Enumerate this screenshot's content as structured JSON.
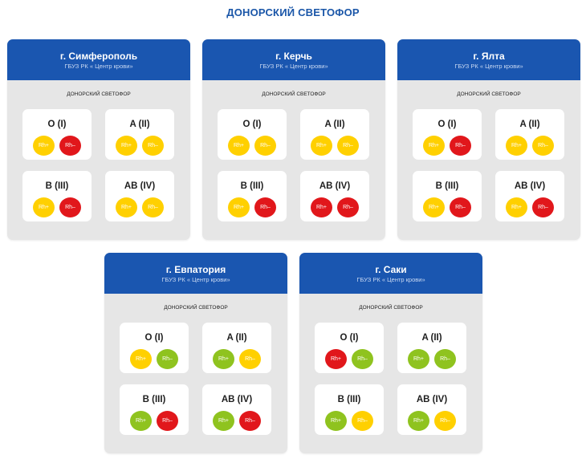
{
  "page_title": "ДОНОРСКИЙ СВЕТОФОР",
  "colors": {
    "header_blue": "#1a56b0",
    "title_blue": "#1a56a8",
    "card_gray": "#e6e6e6",
    "yellow": "#ffd000",
    "red": "#e1171b",
    "green": "#8fc31f"
  },
  "rh_labels": {
    "pos": "Rh+",
    "neg": "Rh–"
  },
  "groups": [
    "O (I)",
    "A (II)",
    "B (III)",
    "AB (IV)"
  ],
  "cards": [
    {
      "city": "г. Симферополь",
      "org": "ГБУЗ РК « Центр крови»",
      "subtitle": "ДОНОРСКИЙ СВЕТОФОР",
      "levels": [
        [
          "yellow",
          "red"
        ],
        [
          "yellow",
          "yellow"
        ],
        [
          "yellow",
          "red"
        ],
        [
          "yellow",
          "yellow"
        ]
      ]
    },
    {
      "city": "г. Керчь",
      "org": "ГБУЗ РК « Центр крови»",
      "subtitle": "ДОНОРСКИЙ СВЕТОФОР",
      "levels": [
        [
          "yellow",
          "yellow"
        ],
        [
          "yellow",
          "yellow"
        ],
        [
          "yellow",
          "red"
        ],
        [
          "red",
          "red"
        ]
      ]
    },
    {
      "city": "г. Ялта",
      "org": "ГБУЗ РК « Центр крови»",
      "subtitle": "ДОНОРСКИЙ СВЕТОФОР",
      "levels": [
        [
          "yellow",
          "red"
        ],
        [
          "yellow",
          "yellow"
        ],
        [
          "yellow",
          "red"
        ],
        [
          "yellow",
          "red"
        ]
      ]
    },
    {
      "city": "г. Евпатория",
      "org": "ГБУЗ РК « Центр крови»",
      "subtitle": "ДОНОРСКИЙ СВЕТОФОР",
      "levels": [
        [
          "yellow",
          "green"
        ],
        [
          "green",
          "yellow"
        ],
        [
          "green",
          "red"
        ],
        [
          "green",
          "red"
        ]
      ]
    },
    {
      "city": "г. Саки",
      "org": "ГБУЗ РК « Центр крови»",
      "subtitle": "ДОНОРСКИЙ СВЕТОФОР",
      "levels": [
        [
          "red",
          "green"
        ],
        [
          "green",
          "green"
        ],
        [
          "green",
          "yellow"
        ],
        [
          "green",
          "yellow"
        ]
      ]
    }
  ]
}
